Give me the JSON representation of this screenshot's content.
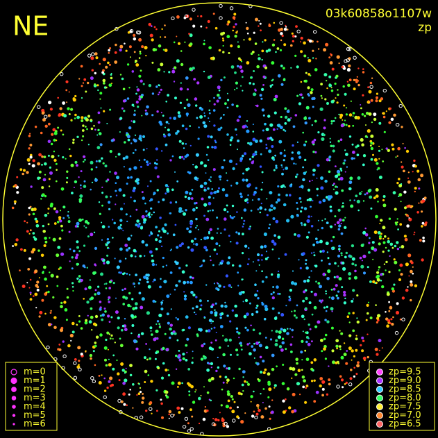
{
  "direction_label": "NE",
  "image_id": "03k60858o1107w",
  "color_key": "zp",
  "magnitude_legend": [
    "m=0",
    "m=1",
    "m=2",
    "m=3",
    "m=4",
    "m=5",
    "m=6"
  ],
  "zp_legend": [
    "zp=9.5",
    "zp=9.0",
    "zp=8.5",
    "zp=8.0",
    "zp=7.5",
    "zp=7.0",
    "zp=6.5"
  ]
}
